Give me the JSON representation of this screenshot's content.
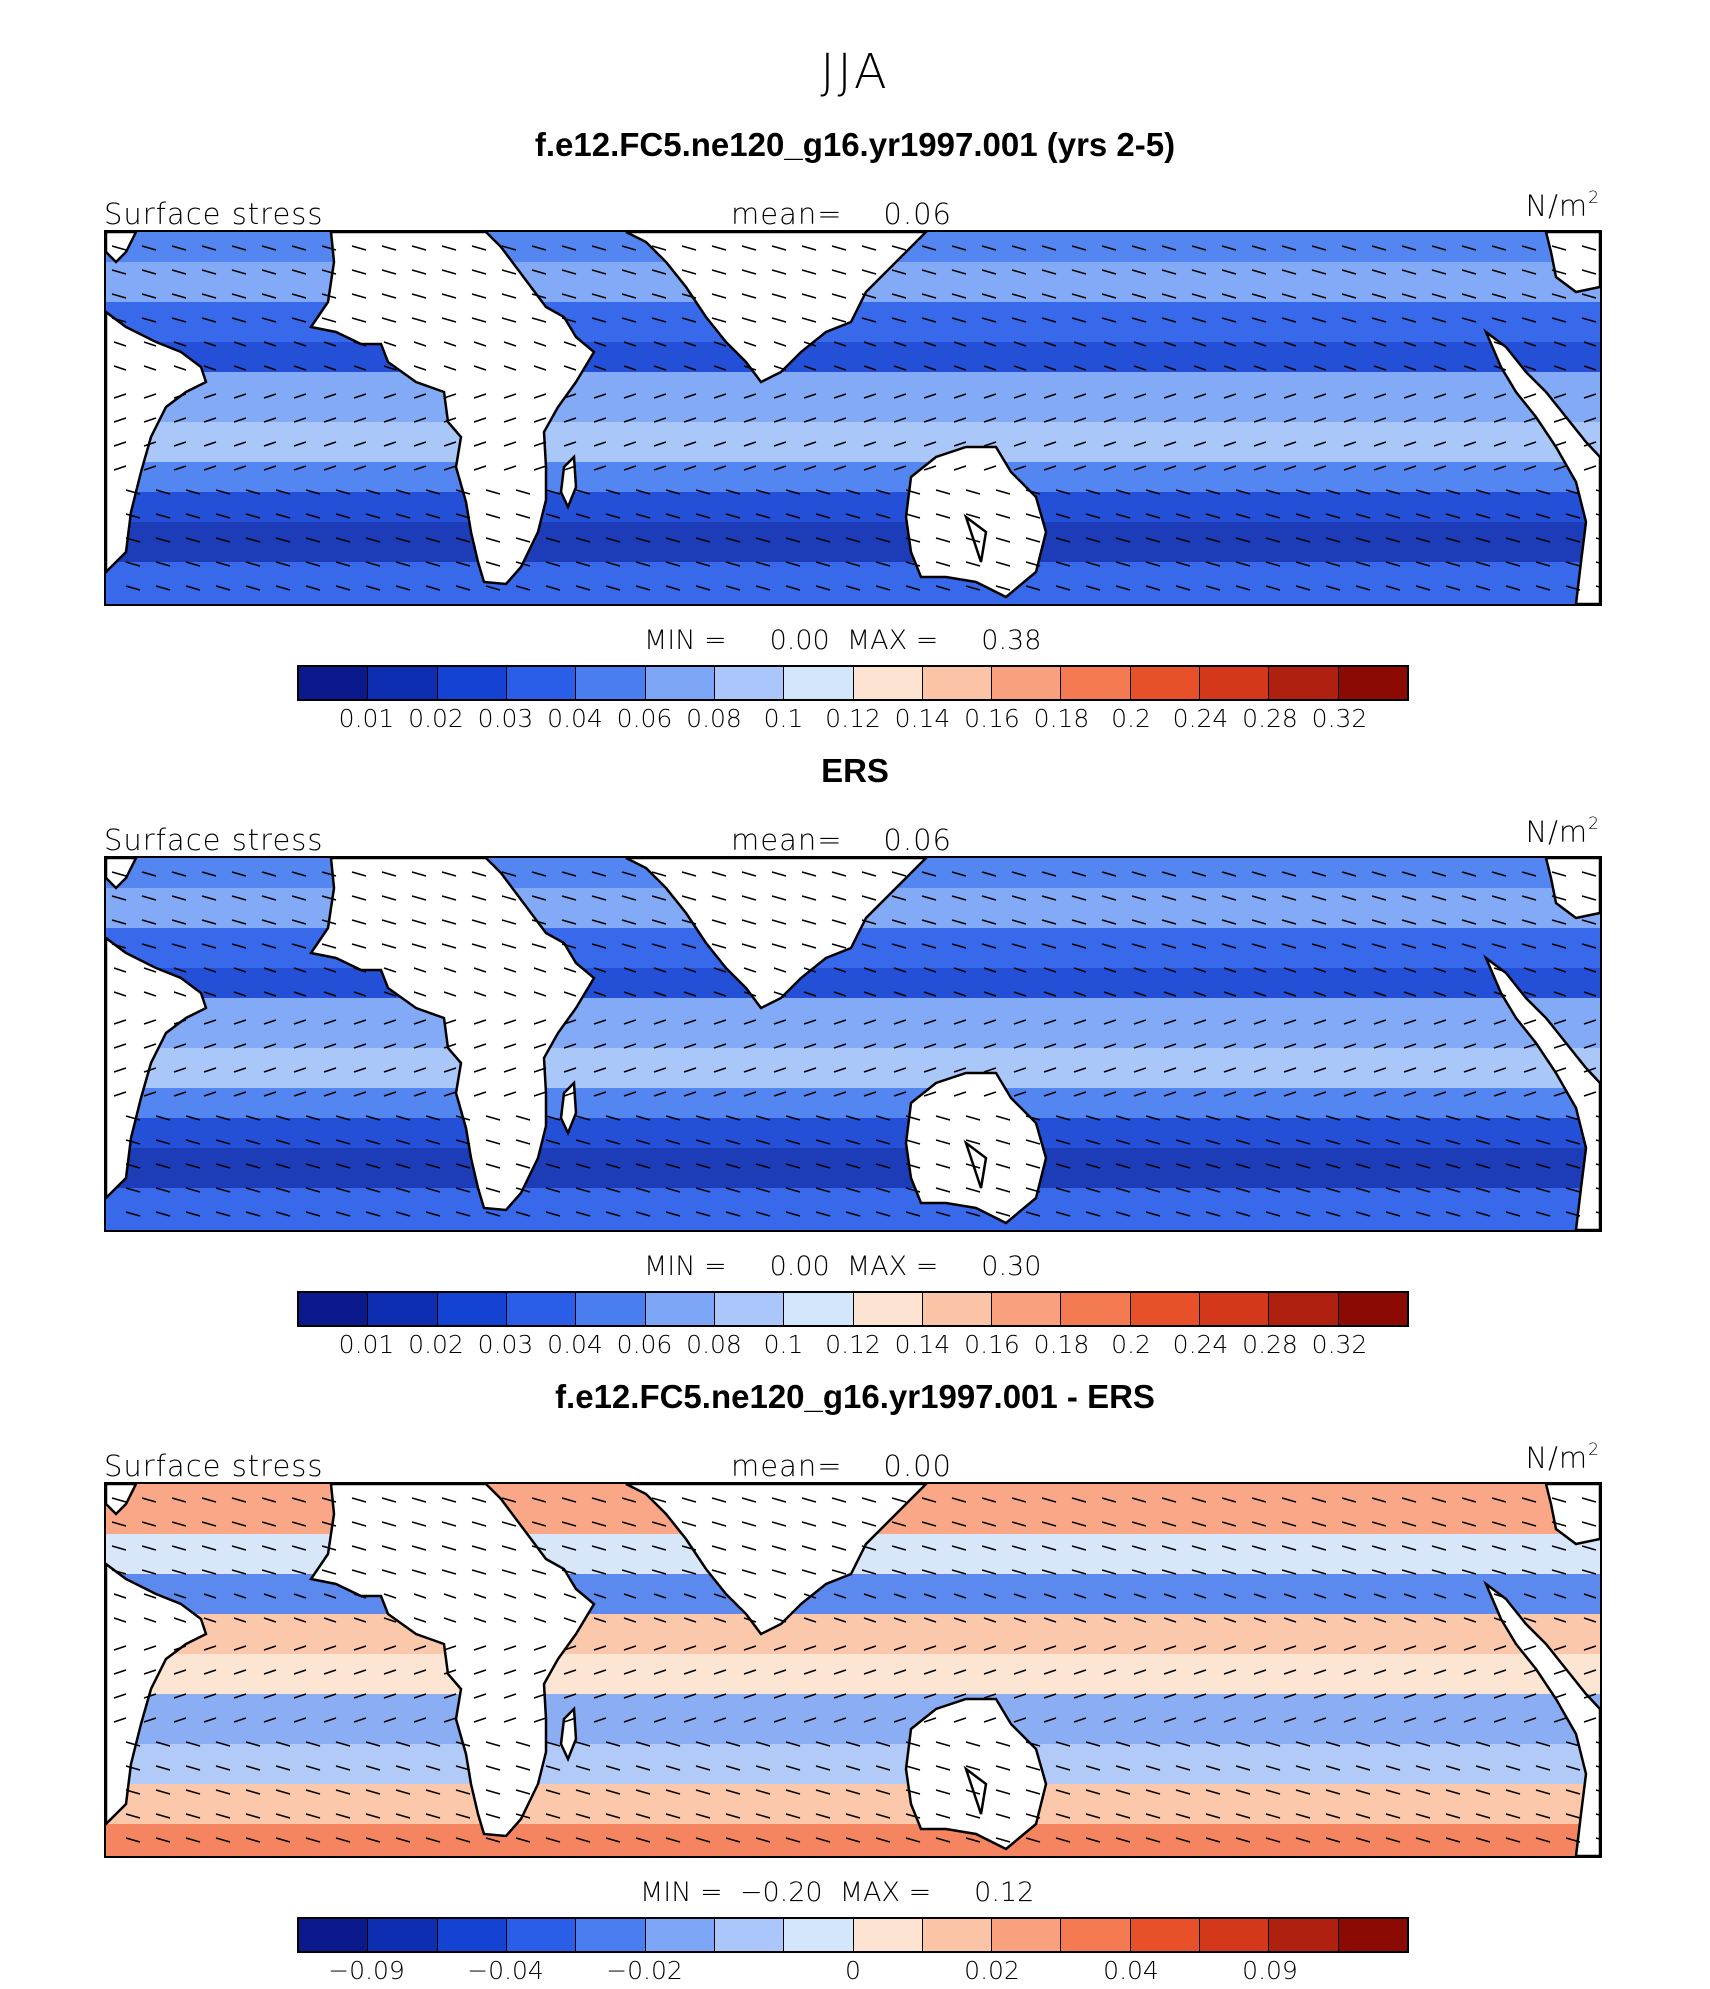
{
  "figure": {
    "title": "JJA"
  },
  "panels": [
    {
      "title": "f.e12.FC5.ne120_g16.yr1997.001 (yrs 2-5)",
      "variable": "Surface stress",
      "mean_label": "mean=",
      "mean_value": "0.06",
      "units": "N/m",
      "units_exp": "2",
      "min_label": "MIN =",
      "min_value": "0.00",
      "max_label": "MAX =",
      "max_value": "0.38",
      "palette": "sequential",
      "ticks": [
        "0.01",
        "0.02",
        "0.03",
        "0.04",
        "0.06",
        "0.08",
        "0.1",
        "0.12",
        "0.14",
        "0.16",
        "0.18",
        "0.2",
        "0.24",
        "0.28",
        "0.32"
      ]
    },
    {
      "title": "ERS",
      "variable": "Surface stress",
      "mean_label": "mean=",
      "mean_value": "0.06",
      "units": "N/m",
      "units_exp": "2",
      "min_label": "MIN =",
      "min_value": "0.00",
      "max_label": "MAX =",
      "max_value": "0.30",
      "palette": "sequential",
      "ticks": [
        "0.01",
        "0.02",
        "0.03",
        "0.04",
        "0.06",
        "0.08",
        "0.1",
        "0.12",
        "0.14",
        "0.16",
        "0.18",
        "0.2",
        "0.24",
        "0.28",
        "0.32"
      ]
    },
    {
      "title": "f.e12.FC5.ne120_g16.yr1997.001 - ERS",
      "variable": "Surface stress",
      "mean_label": "mean=",
      "mean_value": "0.00",
      "units": "N/m",
      "units_exp": "2",
      "min_label": "MIN =",
      "min_value": "−0.20",
      "max_label": "MAX =",
      "max_value": "0.12",
      "palette": "diverging",
      "ticks": [
        "−0.09",
        "−0.04",
        "−0.02",
        "0",
        "0.02",
        "0.04",
        "0.09"
      ]
    }
  ],
  "colorbar_colors": [
    "#0a1a8c",
    "#0d2eb0",
    "#1442d2",
    "#2a5ee8",
    "#4a7ef0",
    "#7ea6f6",
    "#aac6fa",
    "#d4e6fc",
    "#fde4d2",
    "#fcc4a6",
    "#f9a07e",
    "#f47a52",
    "#e8502a",
    "#d4381a",
    "#b02010",
    "#8c0a04"
  ],
  "colors": {
    "land": "#ffffff",
    "coast": "#000000",
    "vector": "#000000"
  }
}
